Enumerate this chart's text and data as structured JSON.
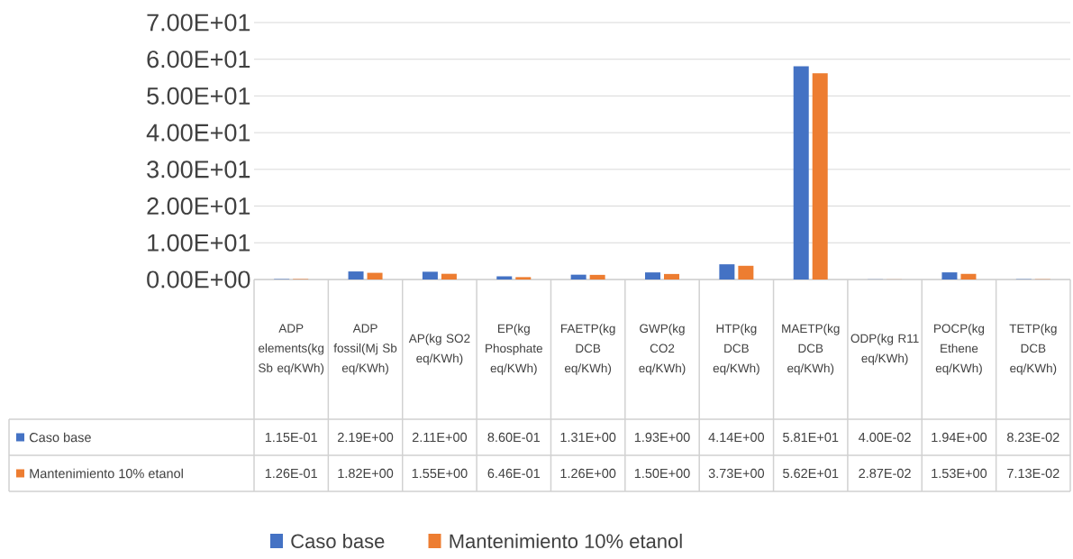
{
  "chart_data": {
    "type": "bar",
    "categories": [
      "ADP elements(kg Sb eq/KWh)",
      "ADP fossil(Mj Sb eq/KWh)",
      "AP(kg SO2 eq/KWh)",
      "EP(kg Phosphate eq/KWh)",
      "FAETP(kg DCB eq/KWh)",
      "GWP(kg CO2 eq/KWh)",
      "HTP(kg DCB eq/KWh)",
      "MAETP(kg DCB eq/KWh)",
      "ODP(kg R11 eq/KWh)",
      "POCP(kg Ethene eq/KWh)",
      "TETP(kg DCB eq/KWh)"
    ],
    "series": [
      {
        "name": "Caso base",
        "color": "#4472c4",
        "values": [
          0.115,
          2.19,
          2.11,
          0.86,
          1.31,
          1.93,
          4.14,
          58.1,
          0.04,
          1.94,
          0.0823
        ],
        "value_labels": [
          "1.15E-01",
          "2.19E+00",
          "2.11E+00",
          "8.60E-01",
          "1.31E+00",
          "1.93E+00",
          "4.14E+00",
          "5.81E+01",
          "4.00E-02",
          "1.94E+00",
          "8.23E-02"
        ]
      },
      {
        "name": "Mantenimiento 10% etanol",
        "color": "#ed7d31",
        "values": [
          0.126,
          1.82,
          1.55,
          0.646,
          1.26,
          1.5,
          3.73,
          56.2,
          0.0287,
          1.53,
          0.0713
        ],
        "value_labels": [
          "1.26E-01",
          "1.82E+00",
          "1.55E+00",
          "6.46E-01",
          "1.26E+00",
          "1.50E+00",
          "3.73E+00",
          "5.62E+01",
          "2.87E-02",
          "1.53E+00",
          "7.13E-02"
        ]
      }
    ],
    "ylim": [
      0,
      70
    ],
    "yticks": [
      {
        "value": 0,
        "label": "0.00E+00"
      },
      {
        "value": 10,
        "label": "1.00E+01"
      },
      {
        "value": 20,
        "label": "2.00E+01"
      },
      {
        "value": 30,
        "label": "3.00E+01"
      },
      {
        "value": 40,
        "label": "4.00E+01"
      },
      {
        "value": 50,
        "label": "5.00E+01"
      },
      {
        "value": 60,
        "label": "6.00E+01"
      },
      {
        "value": 70,
        "label": "7.00E+01"
      }
    ],
    "grid": "y",
    "legend": "bottom"
  }
}
